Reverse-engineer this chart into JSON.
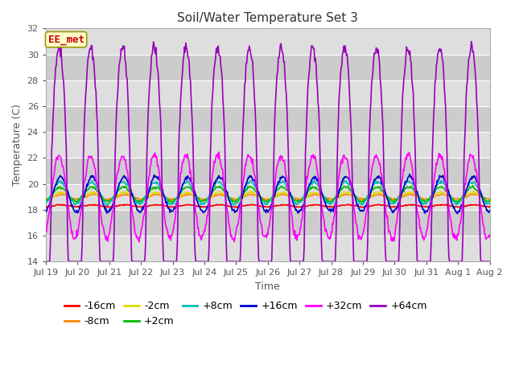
{
  "title": "Soil/Water Temperature Set 3",
  "xlabel": "Time",
  "ylabel": "Temperature (C)",
  "ylim": [
    14,
    32
  ],
  "yticks": [
    14,
    16,
    18,
    20,
    22,
    24,
    26,
    28,
    30,
    32
  ],
  "x_tick_labels": [
    "Jul 19",
    "Jul 20",
    "Jul 21",
    "Jul 22",
    "Jul 23",
    "Jul 24",
    "Jul 25",
    "Jul 26",
    "Jul 27",
    "Jul 28",
    "Jul 29",
    "Jul 30",
    "Jul 31",
    "Aug 1",
    "Aug 2"
  ],
  "annotation_text": "EE_met",
  "annotation_color": "#cc0000",
  "annotation_bg": "#ffffcc",
  "annotation_border": "#999900",
  "series": [
    {
      "label": "-16cm",
      "color": "#ff0000",
      "lw": 1.2
    },
    {
      "label": "-8cm",
      "color": "#ff8800",
      "lw": 1.2
    },
    {
      "label": "-2cm",
      "color": "#dddd00",
      "lw": 1.2
    },
    {
      "label": "+2cm",
      "color": "#00bb00",
      "lw": 1.2
    },
    {
      "label": "+8cm",
      "color": "#00bbbb",
      "lw": 1.2
    },
    {
      "label": "+16cm",
      "color": "#0000cc",
      "lw": 1.2
    },
    {
      "label": "+32cm",
      "color": "#ff00ff",
      "lw": 1.2
    },
    {
      "label": "+64cm",
      "color": "#9900bb",
      "lw": 1.2
    }
  ],
  "bg_light": "#dedede",
  "bg_dark": "#cccccc",
  "grid_color": "#ffffff",
  "title_fontsize": 11,
  "label_fontsize": 9,
  "tick_fontsize": 8,
  "legend_fontsize": 9,
  "fig_width": 6.4,
  "fig_height": 4.8,
  "n_days": 14
}
